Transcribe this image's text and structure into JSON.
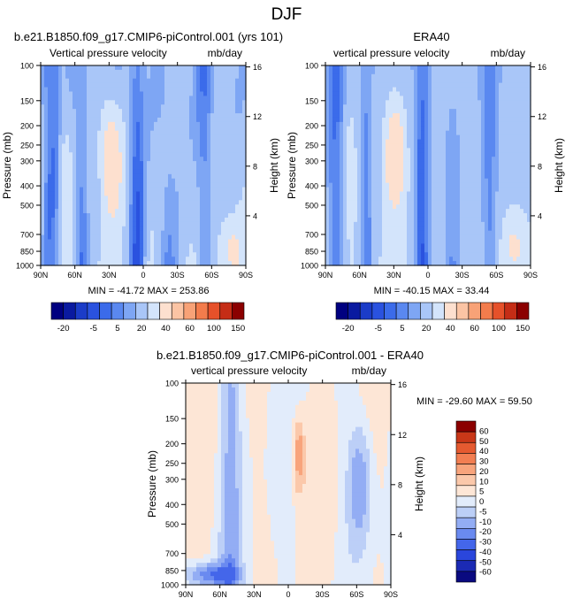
{
  "figure_title": "DJF",
  "colors": {
    "main_levels": [
      "#000080",
      "#0a1aa0",
      "#1b3cc8",
      "#2a52df",
      "#3b6bea",
      "#5a88f0",
      "#7ea6f4",
      "#a9c6f8",
      "#d3e4fb",
      "#fde0cf",
      "#fbc4a4",
      "#f8a277",
      "#f37c4c",
      "#e6512a",
      "#c52d16",
      "#8b0000"
    ],
    "diff_levels": [
      "#0a0a80",
      "#1b2ab4",
      "#2a46dc",
      "#4466ea",
      "#6a8af0",
      "#93adf4",
      "#bccff7",
      "#e2ecfb",
      "#fde6d6",
      "#fbc8aa",
      "#f8a47c",
      "#f27e52",
      "#e55a30",
      "#c93718",
      "#8b0000"
    ]
  },
  "chart_data": [
    {
      "type": "heatmap",
      "title": "b.e21.B1850.f09_g17.CMIP6-piControl.001 (yrs 101)",
      "left_label": "Vertical pressure velocity",
      "right_label": "mb/day",
      "xlabel": "",
      "ylabel": "Pressure (mb)",
      "y2label": "Height (km)",
      "xticks": [
        "90N",
        "60N",
        "30N",
        "0",
        "30S",
        "60S",
        "90S"
      ],
      "yticks": [
        "100",
        "150",
        "200",
        "250",
        "300",
        "400",
        "500",
        "700",
        "850",
        "1000"
      ],
      "y2ticks": [
        "16",
        "12",
        "8",
        "4"
      ],
      "min_max_text": "MIN = -41.72   MAX = 253.86",
      "min": -41.72,
      "max": 253.86
    },
    {
      "type": "heatmap",
      "title": "ERA40",
      "left_label": "vertical pressure velocity",
      "right_label": "mb/day",
      "xlabel": "",
      "ylabel": "Pressure (mb)",
      "y2label": "Height (km)",
      "xticks": [
        "90N",
        "60N",
        "30N",
        "0",
        "30S",
        "60S",
        "90S"
      ],
      "yticks": [
        "100",
        "150",
        "200",
        "250",
        "300",
        "400",
        "500",
        "700",
        "850",
        "1000"
      ],
      "y2ticks": [
        "16",
        "12",
        "8",
        "4"
      ],
      "min_max_text": "MIN = -40.15   MAX =  33.44",
      "min": -40.15,
      "max": 33.44
    },
    {
      "type": "heatmap",
      "title": "b.e21.B1850.f09_g17.CMIP6-piControl.001 - ERA40",
      "left_label": "vertical pressure velocity",
      "right_label": "mb/day",
      "xlabel": "",
      "ylabel": "Pressure (mb)",
      "y2label": "Height (km)",
      "xticks": [
        "90N",
        "60N",
        "30N",
        "0",
        "30S",
        "60S",
        "90S"
      ],
      "yticks": [
        "100",
        "150",
        "200",
        "250",
        "300",
        "400",
        "500",
        "700",
        "850",
        "1000"
      ],
      "y2ticks": [
        "16",
        "12",
        "8",
        "4"
      ],
      "min_max_text": "MIN = -29.60   MAX =  59.50",
      "min": -29.6,
      "max": 59.5
    }
  ],
  "colorbars": {
    "main_labels": [
      "-20",
      "-5",
      "5",
      "20",
      "40",
      "60",
      "100",
      "150"
    ],
    "diff_labels": [
      "60",
      "50",
      "40",
      "30",
      "20",
      "10",
      "5",
      "0",
      "-5",
      "-10",
      "-20",
      "-30",
      "-40",
      "-50",
      "-60"
    ]
  }
}
